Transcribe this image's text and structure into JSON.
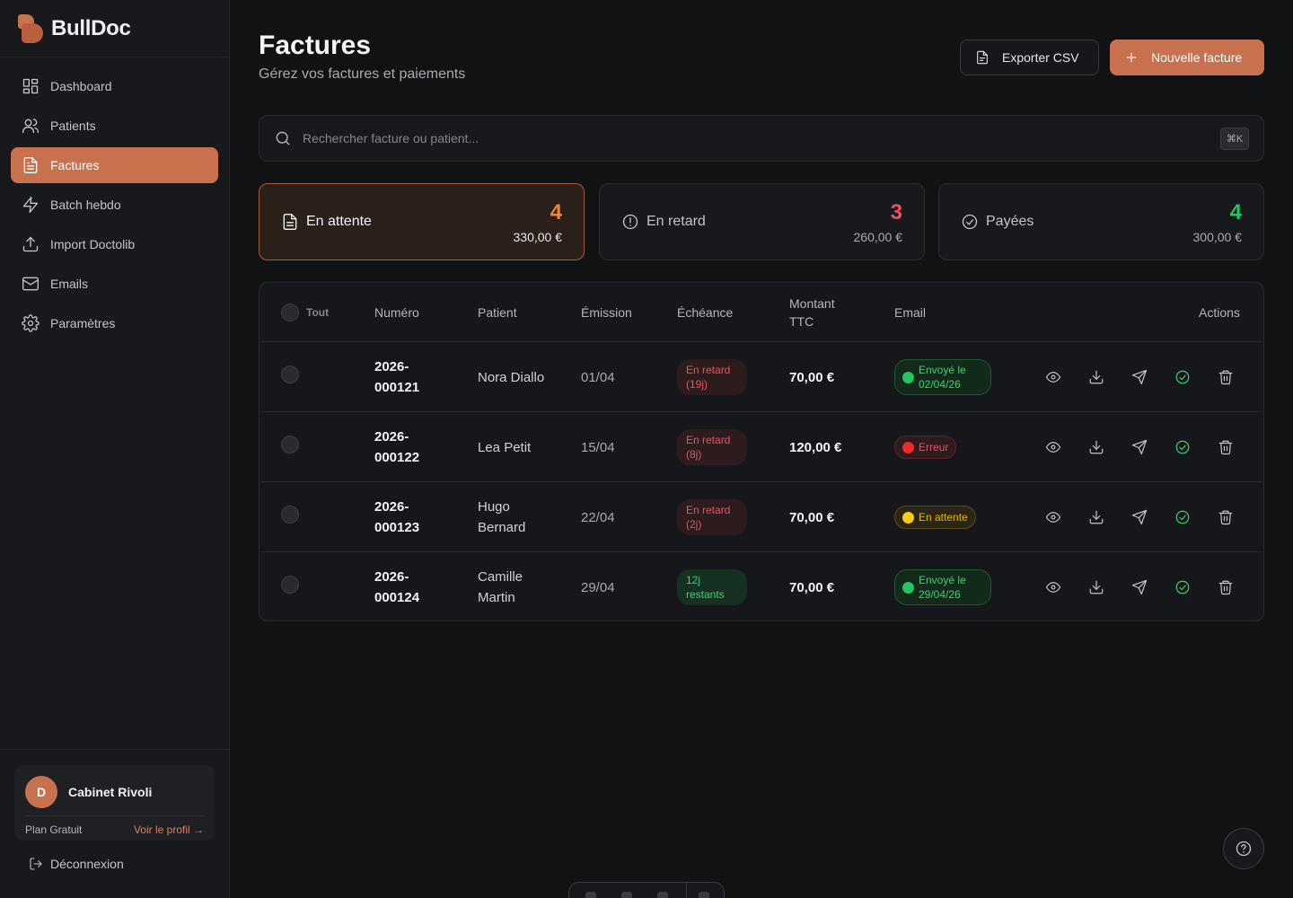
{
  "brand": {
    "name": "BullDoc"
  },
  "sidebar": {
    "items": [
      {
        "label": "Dashboard",
        "icon": "dashboard-icon",
        "active": false
      },
      {
        "label": "Patients",
        "icon": "users-icon",
        "active": false
      },
      {
        "label": "Factures",
        "icon": "file-text-icon",
        "active": true
      },
      {
        "label": "Batch hebdo",
        "icon": "bolt-icon",
        "active": false
      },
      {
        "label": "Import Doctolib",
        "icon": "upload-icon",
        "active": false
      },
      {
        "label": "Emails",
        "icon": "mail-icon",
        "active": false
      },
      {
        "label": "Paramètres",
        "icon": "gear-icon",
        "active": false
      }
    ],
    "profile": {
      "initial": "D",
      "name": "Cabinet Rivoli",
      "plan": "Plan Gratuit",
      "link": "Voir le profil →"
    },
    "logout": "Déconnexion"
  },
  "header": {
    "title": "Factures",
    "subtitle": "Gérez vos factures et paiements",
    "export_label": "Exporter CSV",
    "new_label": "Nouvelle facture"
  },
  "search": {
    "placeholder": "Rechercher facture ou patient...",
    "shortcut": "⌘K"
  },
  "stats": [
    {
      "label": "En attente",
      "count": "4",
      "amount": "330,00 €",
      "color": "#f0833f",
      "active": true
    },
    {
      "label": "En retard",
      "count": "3",
      "amount": "260,00 €",
      "color": "#ef4f5f",
      "active": false
    },
    {
      "label": "Payées",
      "count": "4",
      "amount": "300,00 €",
      "color": "#22c55e",
      "active": false
    }
  ],
  "table": {
    "headers": {
      "select_all": "Tout",
      "number": "Numéro",
      "patient": "Patient",
      "issued": "Émission",
      "due": "Échéance",
      "amount": "Montant TTC",
      "email": "Email",
      "actions": "Actions"
    },
    "rows": [
      {
        "number": "2026-000121",
        "patient": "Nora Diallo",
        "issued": "01/04",
        "due": "En retard (19j)",
        "due_status": "late",
        "amount": "70,00 €",
        "email": "Envoyé le 02/04/26",
        "email_status": "sent"
      },
      {
        "number": "2026-000122",
        "patient": "Lea Petit",
        "issued": "15/04",
        "due": "En retard (8j)",
        "due_status": "late",
        "amount": "120,00 €",
        "email": "Erreur",
        "email_status": "error"
      },
      {
        "number": "2026-000123",
        "patient": "Hugo Bernard",
        "issued": "22/04",
        "due": "En retard (2j)",
        "due_status": "late",
        "amount": "70,00 €",
        "email": "En attente",
        "email_status": "pending"
      },
      {
        "number": "2026-000124",
        "patient": "Camille Martin",
        "issued": "29/04",
        "due": "12j restants",
        "due_status": "ok",
        "amount": "70,00 €",
        "email": "Envoyé le 29/04/26",
        "email_status": "sent"
      }
    ]
  }
}
